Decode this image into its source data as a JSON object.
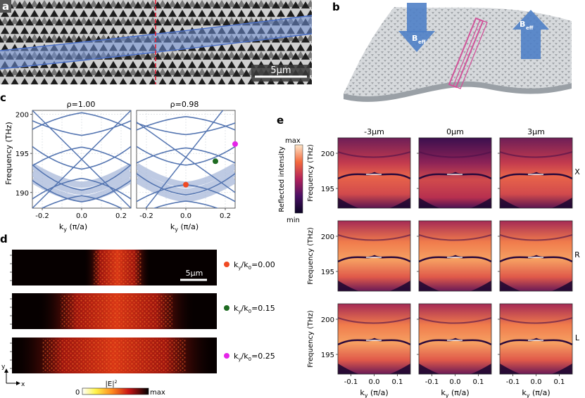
{
  "panels": {
    "a": {
      "letter": "a",
      "scalebar": "5μm",
      "colors": {
        "lattice_bg": "#c8c8c8",
        "hole": "#1c1c1c",
        "waveguide": "#5c7fc2",
        "cut": "#e0233a"
      }
    },
    "b": {
      "letter": "b",
      "arrow_left": "B",
      "arrow_right": "B",
      "arrow_sub": "eff",
      "colors": {
        "arrow": "#4f7fc7",
        "membrane": "#d4d6d8",
        "waveguide": "#d1549a"
      }
    },
    "c": {
      "letter": "c",
      "ylabel": "Frequency (THz)",
      "xlabel_k": "k",
      "xlabel_sub": "y",
      "xlabel_unit": "(π/a)",
      "colors": {
        "band": "#5475b1",
        "band_fill": "#a8b8da",
        "marker1": "#f04a23",
        "marker2": "#1e6b21",
        "marker3": "#e524e8"
      }
    },
    "d": {
      "letter": "d",
      "scalebar": "5μm",
      "axis_y": "y",
      "axis_x": "x",
      "colorbar_min": "0",
      "colorbar_label": "|E|",
      "colorbar_label_sup": "2",
      "colorbar_max": "max",
      "legend": [
        {
          "text": "k",
          "sub1": "y",
          "mid": "/k",
          "sub2": "0",
          "val": "=0.00",
          "color": "#f04a23"
        },
        {
          "text": "k",
          "sub1": "y",
          "mid": "/k",
          "sub2": "0",
          "val": "=0.15",
          "color": "#1e6b21"
        },
        {
          "text": "k",
          "sub1": "y",
          "mid": "/k",
          "sub2": "0",
          "val": "=0.25",
          "color": "#e524e8"
        }
      ]
    },
    "e": {
      "letter": "e",
      "colorbar_max": "max",
      "colorbar_min": "min",
      "colorbar_label": "Reflected intensity",
      "col_titles": [
        "-3μm",
        "0μm",
        "3μm"
      ],
      "row_labels": [
        "X",
        "R",
        "L"
      ],
      "ylabel": "Frequency (THz)",
      "xlabel_k": "k",
      "xlabel_sub": "y",
      "xlabel_unit": "(π/a)",
      "x_ticks": [
        "-0.1",
        "0.0",
        "0.1"
      ],
      "y_ticks": [
        "200",
        "195"
      ]
    }
  },
  "chart_data": [
    {
      "type": "line",
      "title": "ρ=1.00",
      "xlabel": "ky (π/a)",
      "ylabel": "Frequency (THz)",
      "xlim": [
        -0.25,
        0.25
      ],
      "ylim": [
        188,
        200.5
      ],
      "x_ticks": [
        "-0.2",
        "0.0",
        "0.2"
      ],
      "y_ticks": [
        "200",
        "195",
        "190"
      ],
      "grid": true,
      "bands_at_k0": [
        200.2,
        197.3,
        195.8,
        193.0,
        191.8,
        190.3,
        189.6,
        188.8
      ],
      "note_series": "band structure curves"
    },
    {
      "type": "line",
      "title": "ρ=0.98",
      "xlabel": "ky (π/a)",
      "xlim": [
        -0.25,
        0.25
      ],
      "ylim": [
        188,
        200.5
      ],
      "x_ticks": [
        "-0.2",
        "0.0",
        "0.2"
      ],
      "grid": true,
      "bands_at_k0": [
        199.7,
        197.4,
        195.7,
        193.5,
        191.0,
        189.7,
        188.9
      ],
      "markers": [
        {
          "x": 0.0,
          "y": 191.0,
          "color": "#f04a23"
        },
        {
          "x": 0.15,
          "y": 194.0,
          "color": "#1e6b21"
        },
        {
          "x": 0.25,
          "y": 196.2,
          "color": "#e524e8"
        }
      ]
    }
  ]
}
